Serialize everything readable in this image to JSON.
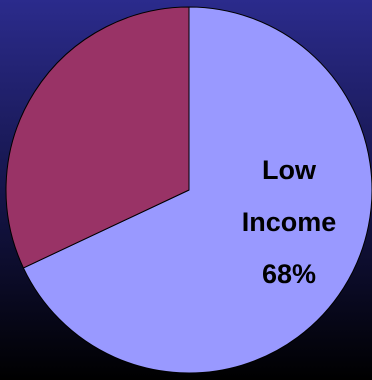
{
  "chart_data": {
    "type": "pie",
    "categories": [
      "Low Income",
      null
    ],
    "values": [
      68,
      32
    ],
    "value_labels": [
      "68%",
      null
    ],
    "colors": [
      "#9999ff",
      "#993366"
    ]
  }
}
